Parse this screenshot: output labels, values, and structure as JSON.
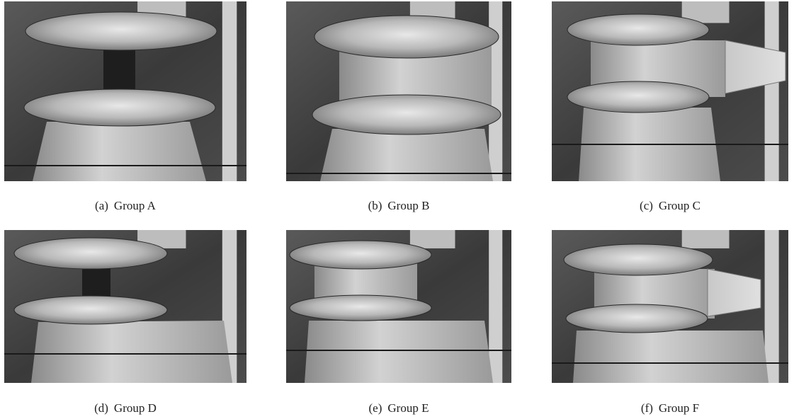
{
  "figure": {
    "panels": [
      {
        "tag": "(a)",
        "name": "Group A"
      },
      {
        "tag": "(b)",
        "name": "Group B"
      },
      {
        "tag": "(c)",
        "name": "Group C"
      },
      {
        "tag": "(d)",
        "name": "Group D"
      },
      {
        "tag": "(e)",
        "name": "Group E"
      },
      {
        "tag": "(f)",
        "name": "Group F"
      }
    ]
  }
}
